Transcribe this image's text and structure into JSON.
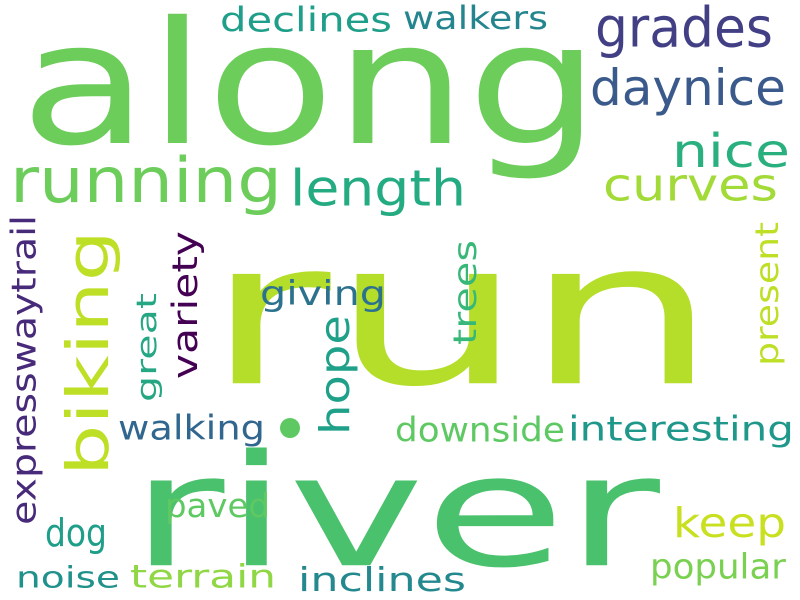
{
  "words": [
    {
      "text": "run",
      "color": "#b5de2b"
    },
    {
      "text": "along",
      "color": "#6ccd5a"
    },
    {
      "text": "river",
      "color": "#4ac16d"
    },
    {
      "text": "running",
      "color": "#6ccd5a"
    },
    {
      "text": "biking",
      "color": "#bddf26"
    },
    {
      "text": "grades",
      "color": "#423f85"
    },
    {
      "text": "daynice",
      "color": "#3b5a8c"
    },
    {
      "text": "length",
      "color": "#25ab82"
    },
    {
      "text": "nice",
      "color": "#2ab07f"
    },
    {
      "text": "curves",
      "color": "#a2da37"
    },
    {
      "text": "keep",
      "color": "#c8e020"
    },
    {
      "text": "hope",
      "color": "#1fa088"
    },
    {
      "text": "variety",
      "color": "#440154"
    },
    {
      "text": "expresswaytrail",
      "color": "#472a7a"
    },
    {
      "text": "declines",
      "color": "#1f9e89"
    },
    {
      "text": "walkers",
      "color": "#25858e"
    },
    {
      "text": "giving",
      "color": "#2c728e"
    },
    {
      "text": "trees",
      "color": "#37b878"
    },
    {
      "text": "present",
      "color": "#bddf26"
    },
    {
      "text": "great",
      "color": "#26a784"
    },
    {
      "text": "walking",
      "color": "#31678e"
    },
    {
      "text": "interesting",
      "color": "#1f988b"
    },
    {
      "text": "downside",
      "color": "#5ec962"
    },
    {
      "text": "paved",
      "color": "#5ec962"
    },
    {
      "text": "dog",
      "color": "#1f9e89"
    },
    {
      "text": "popular",
      "color": "#7ad151"
    },
    {
      "text": "noise",
      "color": "#21918c"
    },
    {
      "text": "terrain",
      "color": "#8fd744"
    },
    {
      "text": "inclines",
      "color": "#23898e"
    }
  ],
  "dot_color": "#5ec962"
}
